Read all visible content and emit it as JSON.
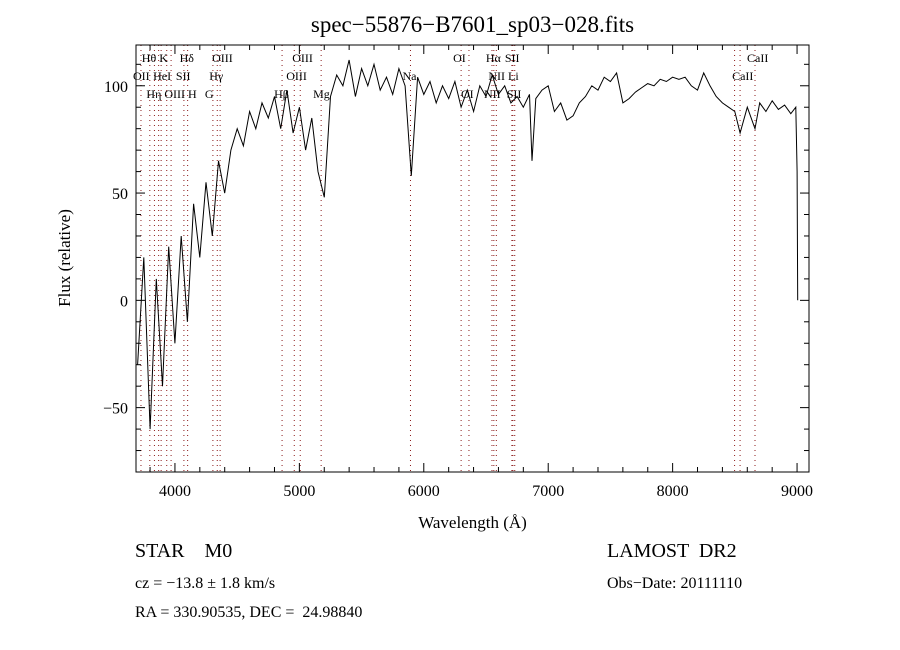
{
  "chart_data": {
    "type": "line",
    "title": "spec−55876−B7601_sp03−028.fits",
    "xlabel": "Wavelength (Å)",
    "ylabel": "Flux (relative)",
    "xlim": [
      3687,
      9096
    ],
    "ylim": [
      -80,
      119
    ],
    "xticks": [
      4000,
      5000,
      6000,
      7000,
      8000,
      9000
    ],
    "yticks": [
      -50,
      0,
      50,
      100
    ],
    "grid": false,
    "series": [
      {
        "name": "spectrum",
        "x": [
          3700,
          3750,
          3800,
          3850,
          3900,
          3950,
          4000,
          4050,
          4100,
          4150,
          4200,
          4250,
          4300,
          4350,
          4400,
          4450,
          4500,
          4550,
          4600,
          4650,
          4700,
          4750,
          4800,
          4850,
          4900,
          4950,
          5000,
          5050,
          5100,
          5150,
          5200,
          5250,
          5300,
          5350,
          5400,
          5450,
          5500,
          5550,
          5600,
          5650,
          5700,
          5750,
          5800,
          5850,
          5900,
          5950,
          6000,
          6050,
          6100,
          6150,
          6200,
          6250,
          6300,
          6350,
          6400,
          6450,
          6500,
          6550,
          6600,
          6650,
          6700,
          6750,
          6800,
          6850,
          6870,
          6900,
          6950,
          7000,
          7050,
          7100,
          7150,
          7200,
          7250,
          7300,
          7350,
          7400,
          7450,
          7500,
          7550,
          7600,
          7650,
          7700,
          7750,
          7800,
          7850,
          7900,
          7950,
          8000,
          8050,
          8100,
          8150,
          8200,
          8250,
          8300,
          8350,
          8400,
          8450,
          8500,
          8542,
          8600,
          8662,
          8700,
          8750,
          8800,
          8850,
          8900,
          8950,
          8990,
          9000,
          9005
        ],
        "y": [
          -30,
          20,
          -60,
          10,
          -40,
          25,
          -20,
          30,
          -10,
          45,
          20,
          55,
          30,
          65,
          50,
          70,
          80,
          72,
          88,
          80,
          92,
          85,
          95,
          80,
          98,
          78,
          90,
          70,
          85,
          60,
          48,
          95,
          105,
          100,
          112,
          95,
          108,
          100,
          110,
          98,
          104,
          96,
          108,
          100,
          58,
          104,
          96,
          102,
          92,
          100,
          94,
          102,
          90,
          98,
          88,
          100,
          95,
          105,
          96,
          100,
          92,
          95,
          90,
          96,
          65,
          94,
          98,
          100,
          88,
          92,
          84,
          86,
          92,
          95,
          100,
          98,
          104,
          102,
          106,
          92,
          94,
          97,
          99,
          101,
          100,
          103,
          102,
          104,
          103,
          104,
          100,
          98,
          106,
          100,
          95,
          92,
          90,
          88,
          78,
          90,
          80,
          92,
          88,
          93,
          89,
          91,
          87,
          90,
          60,
          0
        ]
      }
    ],
    "line_markers": [
      {
        "label": "Hθ",
        "wave": 3798,
        "row": 1
      },
      {
        "label": "K",
        "wave": 3934,
        "row": 1
      },
      {
        "label": "Hδ",
        "wave": 4102,
        "row": 1
      },
      {
        "label": "OIII",
        "wave": 4363,
        "row": 1
      },
      {
        "label": "OIII",
        "wave": 5007,
        "row": 1
      },
      {
        "label": "OI",
        "wave": 6300,
        "row": 1
      },
      {
        "label": "Hα",
        "wave": 6563,
        "row": 1
      },
      {
        "label": "SII",
        "wave": 6716,
        "row": 1
      },
      {
        "label": "CaII",
        "wave": 8662,
        "row": 1
      },
      {
        "label": "OII",
        "wave": 3727,
        "row": 2
      },
      {
        "label": "HeI",
        "wave": 3889,
        "row": 2
      },
      {
        "label": "SII",
        "wave": 4072,
        "row": 2
      },
      {
        "label": "Hγ",
        "wave": 4340,
        "row": 2
      },
      {
        "label": "OIII",
        "wave": 4959,
        "row": 2
      },
      {
        "label": "Na",
        "wave": 5893,
        "row": 2
      },
      {
        "label": "NII",
        "wave": 6583,
        "row": 2
      },
      {
        "label": "Li",
        "wave": 6708,
        "row": 2
      },
      {
        "label": "CaII",
        "wave": 8542,
        "row": 2
      },
      {
        "label": "OIII",
        "wave": 3869,
        "row": 3
      },
      {
        "label": "Hη",
        "wave": 3835,
        "row": 3
      },
      {
        "label": "H",
        "wave": 3969,
        "row": 3
      },
      {
        "label": "G",
        "wave": 4305,
        "row": 3
      },
      {
        "label": "Hβ",
        "wave": 4861,
        "row": 3
      },
      {
        "label": "Mg",
        "wave": 5175,
        "row": 3
      },
      {
        "label": "OI",
        "wave": 6363,
        "row": 3
      },
      {
        "label": "NII",
        "wave": 6548,
        "row": 3
      },
      {
        "label": "SII",
        "wave": 6731,
        "row": 3
      },
      {
        "label": "",
        "wave": 8498,
        "row": 0
      }
    ]
  },
  "info": {
    "class": "STAR    M0",
    "survey": "LAMOST  DR2",
    "cz": "cz = −13.8 ± 1.8 km/s",
    "obs_date": "Obs−Date: 20111110",
    "radec": "RA = 330.90535, DEC =  24.98840"
  },
  "colors": {
    "line": "#000000",
    "marker": "#8b1a1a"
  }
}
